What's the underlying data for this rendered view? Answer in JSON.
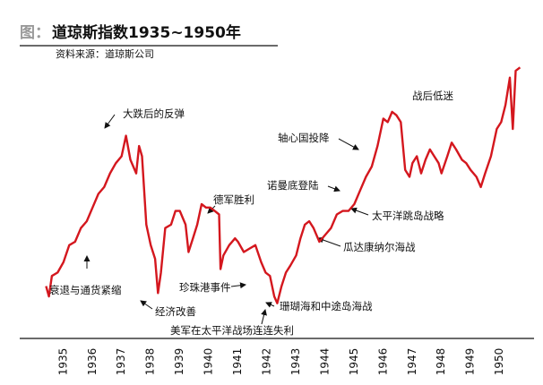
{
  "chart_data": {
    "type": "line",
    "title_prefix": "图：",
    "title": "道琼斯指数1935~1950年",
    "subtitle": "资料来源：道琼斯公司",
    "x": [
      1934.4,
      1934.5,
      1934.6,
      1934.8,
      1935.0,
      1935.2,
      1935.4,
      1935.6,
      1935.8,
      1936.0,
      1936.2,
      1936.4,
      1936.6,
      1936.8,
      1937.0,
      1937.15,
      1937.3,
      1937.5,
      1937.6,
      1937.7,
      1937.85,
      1938.0,
      1938.15,
      1938.25,
      1938.35,
      1938.5,
      1938.7,
      1938.85,
      1939.0,
      1939.2,
      1939.3,
      1939.45,
      1939.6,
      1939.75,
      1939.9,
      1940.05,
      1940.2,
      1940.35,
      1940.4,
      1940.5,
      1940.7,
      1940.9,
      1941.0,
      1941.2,
      1941.4,
      1941.6,
      1941.8,
      1941.95,
      1942.1,
      1942.25,
      1942.35,
      1942.5,
      1942.65,
      1942.8,
      1943.0,
      1943.15,
      1943.3,
      1943.45,
      1943.6,
      1943.8,
      1944.0,
      1944.2,
      1944.4,
      1944.6,
      1944.8,
      1945.0,
      1945.2,
      1945.4,
      1945.6,
      1945.8,
      1946.0,
      1946.15,
      1946.3,
      1946.45,
      1946.6,
      1946.75,
      1946.9,
      1947.0,
      1947.15,
      1947.3,
      1947.45,
      1947.6,
      1947.75,
      1947.9,
      1948.0,
      1948.2,
      1948.35,
      1948.5,
      1948.7,
      1948.85,
      1949.0,
      1949.2,
      1949.35,
      1949.5,
      1949.7,
      1949.9,
      1950.05,
      1950.2,
      1950.35,
      1950.45,
      1950.55,
      1950.7
    ],
    "series": [
      {
        "name": "道琼斯指数",
        "color": "#d4171e",
        "values": [
          104,
          98,
          110,
          112,
          118,
          128,
          130,
          138,
          142,
          150,
          158,
          162,
          170,
          176,
          180,
          192,
          178,
          170,
          186,
          180,
          140,
          128,
          120,
          100,
          112,
          138,
          140,
          148,
          148,
          140,
          124,
          132,
          140,
          152,
          150,
          150,
          148,
          146,
          114,
          122,
          128,
          132,
          130,
          124,
          126,
          128,
          118,
          112,
          110,
          98,
          94,
          104,
          112,
          116,
          122,
          132,
          140,
          142,
          138,
          130,
          134,
          138,
          146,
          148,
          148,
          152,
          160,
          168,
          174,
          186,
          202,
          200,
          206,
          204,
          200,
          172,
          168,
          176,
          180,
          170,
          178,
          184,
          180,
          176,
          170,
          180,
          188,
          184,
          178,
          176,
          172,
          168,
          162,
          170,
          180,
          196,
          200,
          210,
          226,
          196,
          230,
          232
        ]
      }
    ],
    "xlim": [
      1934.05,
      1950.75
    ],
    "ylim": [
      75,
      240
    ],
    "xticks": [
      1935,
      1936,
      1937,
      1938,
      1939,
      1940,
      1941,
      1942,
      1943,
      1944,
      1945,
      1946,
      1947,
      1948,
      1949,
      1950
    ],
    "annotations": [
      "大跌后的反弹",
      "衰退与通货紧缩",
      "经济改善",
      "德军胜利",
      "珍珠港事件",
      "美军在太平洋战场连连失利",
      "珊瑚海和中途岛海战",
      "瓜达康纳尔海战",
      "太平洋跳岛战略",
      "诺曼底登陆",
      "轴心国投降",
      "战后低迷"
    ]
  }
}
